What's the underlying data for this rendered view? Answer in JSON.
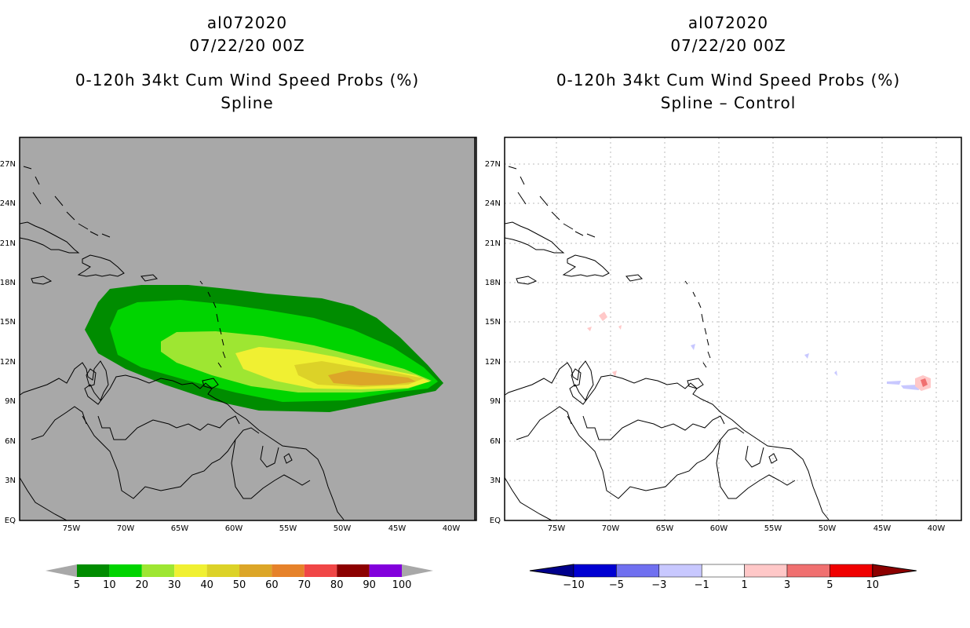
{
  "left_panel": {
    "storm_id": "al072020",
    "datetime": "07/22/20 00Z",
    "product": "0-120h 34kt Cum Wind Speed Probs (%)",
    "subtitle": "Spline"
  },
  "right_panel": {
    "storm_id": "al072020",
    "datetime": "07/22/20 00Z",
    "product": "0-120h 34kt Cum Wind Speed Probs (%)",
    "subtitle": "Spline – Control"
  },
  "axes": {
    "lat_labels": [
      "27N",
      "24N",
      "21N",
      "18N",
      "15N",
      "12N",
      "9N",
      "6N",
      "3N",
      "EQ"
    ],
    "lon_labels": [
      "75W",
      "70W",
      "65W",
      "60W",
      "55W",
      "50W",
      "45W",
      "40W"
    ]
  },
  "colorbar_left": {
    "labels": [
      "5",
      "10",
      "20",
      "30",
      "40",
      "50",
      "60",
      "70",
      "80",
      "90",
      "100"
    ],
    "colors": [
      "#008c00",
      "#00d400",
      "#9ee632",
      "#f0f032",
      "#dcd228",
      "#dca628",
      "#e6822a",
      "#f04646",
      "#8c0000",
      "#8200dc"
    ]
  },
  "colorbar_right": {
    "labels": [
      "−10",
      "−5",
      "−3",
      "−1",
      "1",
      "3",
      "5",
      "10"
    ],
    "colors": [
      "#0000d2",
      "#7070f0",
      "#c8c8ff",
      "#ffffff",
      "#ffc8c8",
      "#f07070",
      "#f00000"
    ],
    "end_low": "#00008c",
    "end_high": "#8c0000"
  },
  "map_colors": {
    "background_left": "#a8a8a8",
    "background_right": "#ffffff"
  }
}
